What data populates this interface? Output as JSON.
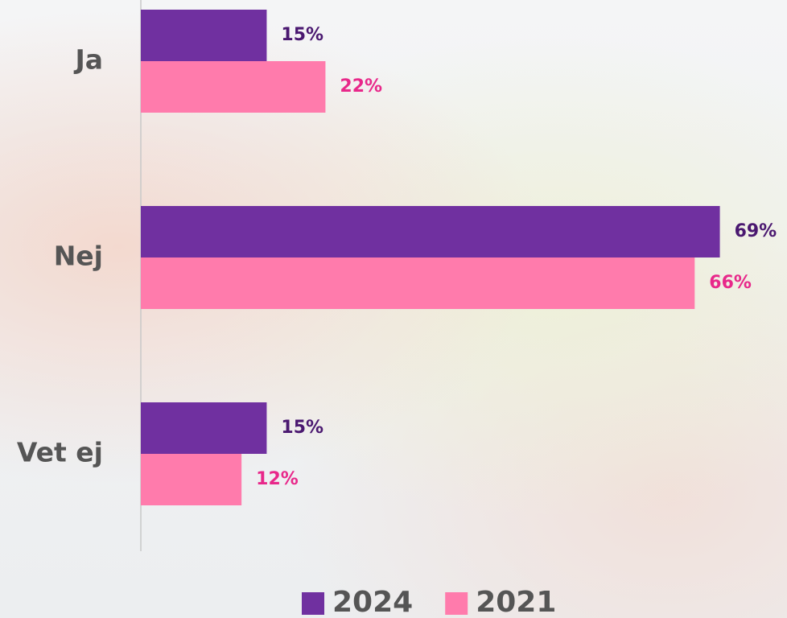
{
  "chart_data": {
    "type": "bar",
    "orientation": "horizontal",
    "categories": [
      "Ja",
      "Nej",
      "Vet ej"
    ],
    "series": [
      {
        "name": "2024",
        "color": "#7030a0",
        "label_color": "#4a1870",
        "values": [
          15,
          69,
          15
        ],
        "value_labels": [
          "15%",
          "69%",
          "15%"
        ]
      },
      {
        "name": "2021",
        "color": "#ff7bac",
        "label_color": "#e8288a",
        "values": [
          22,
          66,
          12
        ],
        "value_labels": [
          "22%",
          "66%",
          "12%"
        ]
      }
    ],
    "xlim": [
      0,
      77
    ],
    "legend": "bottom"
  }
}
